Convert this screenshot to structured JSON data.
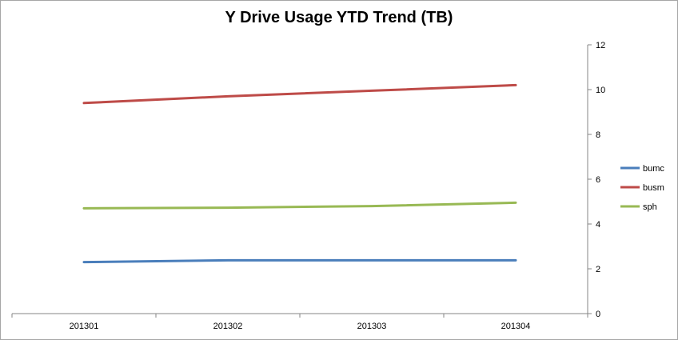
{
  "chart_data": {
    "type": "line",
    "title": "Y Drive Usage YTD Trend (TB)",
    "categories": [
      "201301",
      "201302",
      "201303",
      "201304"
    ],
    "yticks": [
      0,
      2,
      4,
      6,
      8,
      10,
      12
    ],
    "ylim": [
      0,
      12
    ],
    "y_axis_side": "right",
    "grid": false,
    "legend_position": "right",
    "series": [
      {
        "name": "bumc",
        "color": "#4a7ebb",
        "values": [
          2.3,
          2.38,
          2.38,
          2.38
        ]
      },
      {
        "name": "busm",
        "color": "#be4b48",
        "values": [
          9.4,
          9.7,
          9.95,
          10.2
        ]
      },
      {
        "name": "sph",
        "color": "#98b954",
        "values": [
          4.7,
          4.73,
          4.8,
          4.95
        ]
      }
    ]
  }
}
